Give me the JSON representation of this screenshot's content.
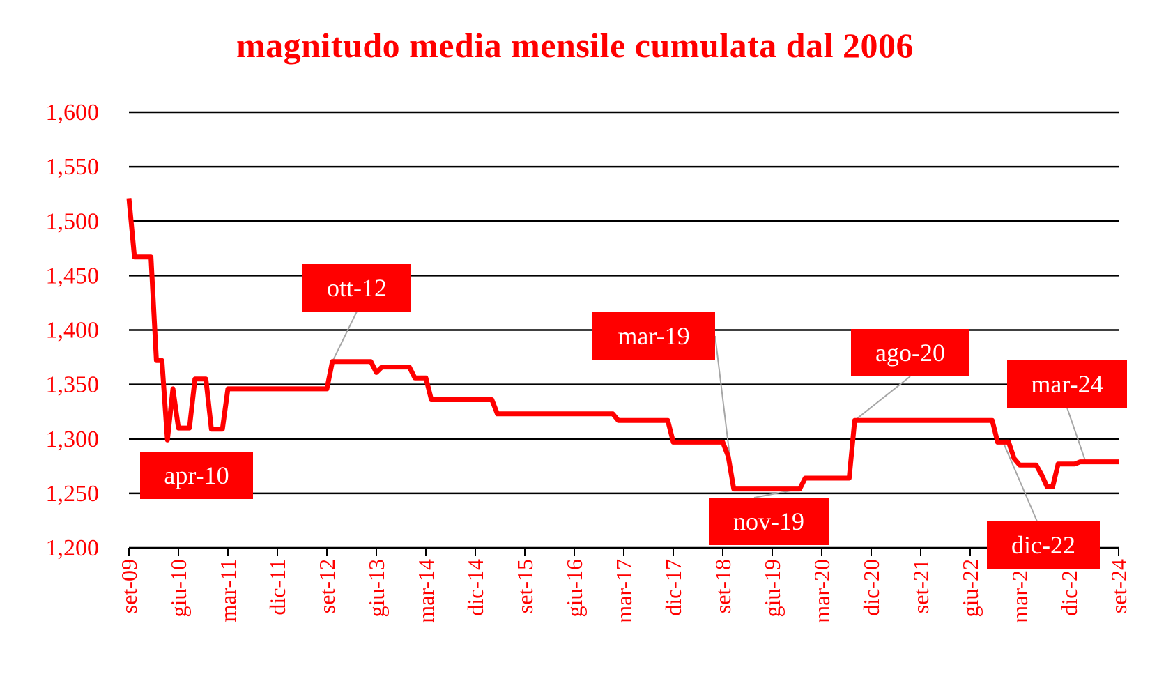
{
  "chart_data": {
    "type": "line",
    "title": "magnitudo media mensile cumulata dal 2006",
    "xlabel": "",
    "ylabel": "",
    "ylim": [
      1.2,
      1.6
    ],
    "y_ticks": [
      1.2,
      1.25,
      1.3,
      1.35,
      1.4,
      1.45,
      1.5,
      1.55,
      1.6
    ],
    "y_tick_labels": [
      "1,200",
      "1,250",
      "1,300",
      "1,350",
      "1,400",
      "1,450",
      "1,500",
      "1,550",
      "1,600"
    ],
    "x_start": "set-09",
    "x_end": "set-24",
    "x_tick_labels": [
      "set-09",
      "giu-10",
      "mar-11",
      "dic-11",
      "set-12",
      "giu-13",
      "mar-14",
      "dic-14",
      "set-15",
      "giu-16",
      "mar-17",
      "dic-17",
      "set-18",
      "giu-19",
      "mar-20",
      "dic-20",
      "set-21",
      "giu-22",
      "mar-23",
      "dic-23",
      "set-24"
    ],
    "grid": true,
    "line_color": "#ff0000",
    "series": [
      {
        "points": [
          [
            "set-09",
            1.521
          ],
          [
            "ott-09",
            1.467
          ],
          [
            "nov-09",
            1.467
          ],
          [
            "dic-09",
            1.467
          ],
          [
            "gen-10",
            1.467
          ],
          [
            "feb-10",
            1.372
          ],
          [
            "mar-10",
            1.372
          ],
          [
            "apr-10",
            1.299
          ],
          [
            "mag-10",
            1.346
          ],
          [
            "giu-10",
            1.31
          ],
          [
            "lug-10",
            1.31
          ],
          [
            "ago-10",
            1.31
          ],
          [
            "set-10",
            1.355
          ],
          [
            "ott-10",
            1.355
          ],
          [
            "nov-10",
            1.355
          ],
          [
            "dic-10",
            1.309
          ],
          [
            "gen-11",
            1.309
          ],
          [
            "feb-11",
            1.309
          ],
          [
            "mar-11",
            1.346
          ],
          [
            "dic-11",
            1.346
          ],
          [
            "set-12",
            1.346
          ],
          [
            "ott-12",
            1.371
          ],
          [
            "mag-13",
            1.371
          ],
          [
            "giu-13",
            1.361
          ],
          [
            "lug-13",
            1.366
          ],
          [
            "dic-13",
            1.366
          ],
          [
            "gen-14",
            1.356
          ],
          [
            "mar-14",
            1.356
          ],
          [
            "apr-14",
            1.336
          ],
          [
            "mar-15",
            1.336
          ],
          [
            "apr-15",
            1.323
          ],
          [
            "gen-17",
            1.323
          ],
          [
            "feb-17",
            1.317
          ],
          [
            "nov-17",
            1.317
          ],
          [
            "dic-17",
            1.297
          ],
          [
            "set-18",
            1.297
          ],
          [
            "ott-18",
            1.284
          ],
          [
            "nov-18",
            1.254
          ],
          [
            "dic-18",
            1.254
          ],
          [
            "nov-19",
            1.254
          ],
          [
            "dic-19",
            1.264
          ],
          [
            "ago-20",
            1.264
          ],
          [
            "set-20",
            1.317
          ],
          [
            "ott-20",
            1.317
          ],
          [
            "ott-22",
            1.317
          ],
          [
            "nov-22",
            1.297
          ],
          [
            "dic-22",
            1.297
          ],
          [
            "gen-23",
            1.297
          ],
          [
            "feb-23",
            1.282
          ],
          [
            "mar-23",
            1.276
          ],
          [
            "giu-23",
            1.276
          ],
          [
            "lug-23",
            1.267
          ],
          [
            "ago-23",
            1.256
          ],
          [
            "set-23",
            1.256
          ],
          [
            "ott-23",
            1.277
          ],
          [
            "gen-24",
            1.277
          ],
          [
            "feb-24",
            1.279
          ],
          [
            "set-24",
            1.279
          ]
        ]
      }
    ],
    "annotations": [
      {
        "label": "apr-10",
        "at": "apr-10"
      },
      {
        "label": "ott-12",
        "at": "ott-12"
      },
      {
        "label": "mar-19",
        "at": "nov-18"
      },
      {
        "label": "nov-19",
        "at": "nov-19"
      },
      {
        "label": "ago-20",
        "at": "set-20"
      },
      {
        "label": "dic-22",
        "at": "dic-22"
      },
      {
        "label": "mar-24",
        "at": "mar-24"
      }
    ]
  }
}
